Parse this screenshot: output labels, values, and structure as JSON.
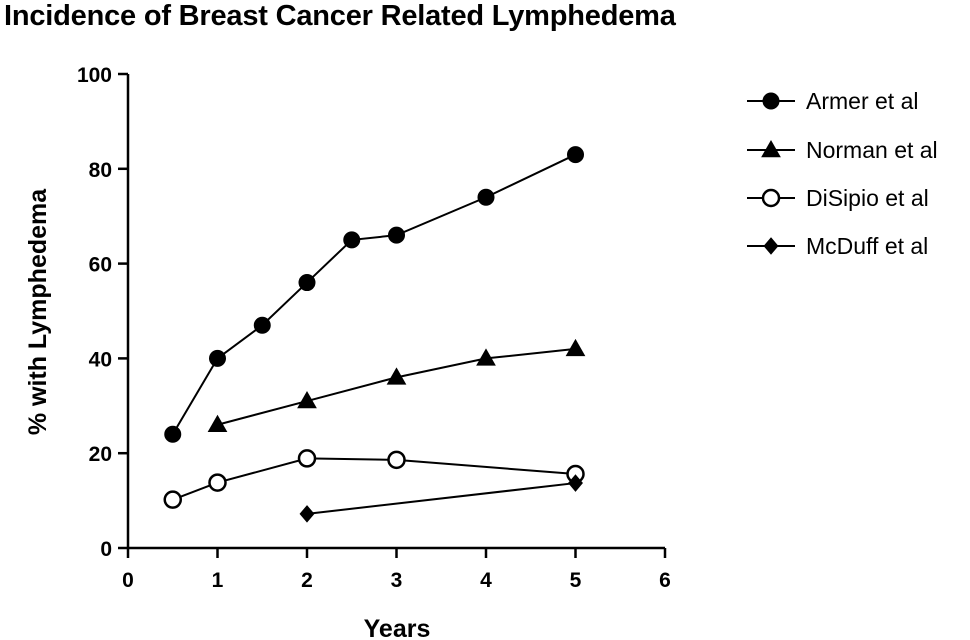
{
  "chart_data": {
    "type": "line",
    "title": "Incidence of Breast Cancer Related Lymphedema",
    "xlabel": "Years",
    "ylabel": "% with Lymphedema",
    "xlim": [
      0,
      6
    ],
    "ylim": [
      0,
      100
    ],
    "x_ticks": [
      0,
      1,
      2,
      3,
      4,
      5,
      6
    ],
    "y_ticks": [
      0,
      20,
      40,
      60,
      80,
      100
    ],
    "grid": false,
    "legend_position": "right",
    "series": [
      {
        "name": "Armer et al",
        "marker": "filled-circle",
        "x": [
          0.5,
          1,
          1.5,
          2,
          2.5,
          3,
          4,
          5
        ],
        "y": [
          24,
          40,
          47,
          56,
          65,
          66,
          74,
          83
        ]
      },
      {
        "name": "Norman et al",
        "marker": "filled-triangle",
        "x": [
          1,
          2,
          3,
          4,
          5
        ],
        "y": [
          26,
          31,
          36,
          40,
          42
        ]
      },
      {
        "name": "DiSipio et al",
        "marker": "open-circle",
        "x": [
          0.5,
          1,
          2,
          3,
          5
        ],
        "y": [
          10.2,
          13.8,
          18.9,
          18.6,
          15.6
        ]
      },
      {
        "name": "McDuff et al",
        "marker": "filled-diamond",
        "x": [
          2,
          5
        ],
        "y": [
          7.2,
          13.7
        ]
      }
    ]
  }
}
